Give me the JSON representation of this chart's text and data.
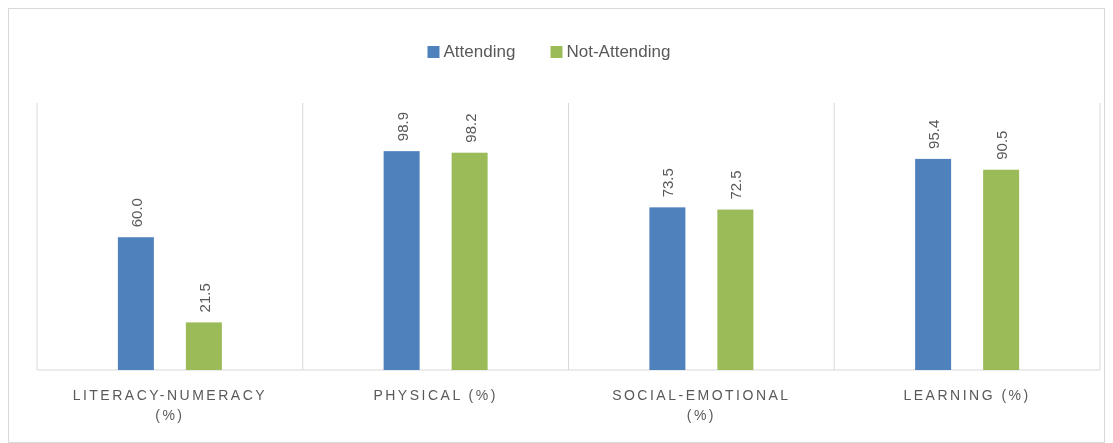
{
  "chart_data": {
    "type": "bar",
    "categories": [
      "LITERACY-NUMERACY (%)",
      "PHYSICAL (%)",
      "SOCIAL-EMOTIONAL (%)",
      "LEARNING (%)"
    ],
    "series": [
      {
        "name": "Attending",
        "color": "#4f81bd",
        "values": [
          60.0,
          98.9,
          73.5,
          95.4
        ],
        "value_labels": [
          "60.0",
          "98.9",
          "73.5",
          "95.4"
        ]
      },
      {
        "name": "Not-Attending",
        "color": "#9bbb59",
        "values": [
          21.5,
          98.2,
          72.5,
          90.5
        ],
        "value_labels": [
          "21.5",
          "98.2",
          "72.5",
          "90.5"
        ]
      }
    ],
    "relative": false,
    "legend": "top"
  }
}
